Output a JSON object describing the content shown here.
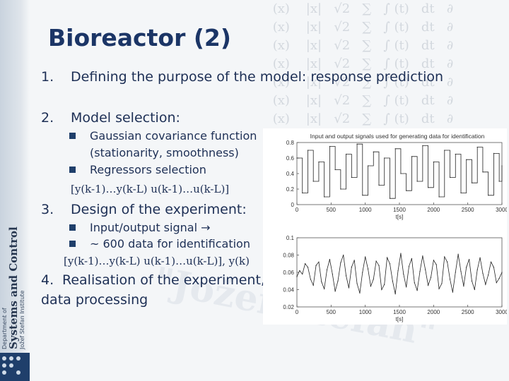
{
  "slide": {
    "title": "Bioreactor (2)",
    "items": [
      {
        "num": "1.",
        "text": "Defining the purpose of the model: response prediction"
      },
      {
        "num": "2.",
        "text": "Model selection:"
      },
      {
        "num": "3.",
        "text": "Design of the experiment:"
      },
      {
        "num": "4.",
        "text": "Realisation of the experiment,"
      }
    ],
    "item4_line2": "data processing",
    "model_selection": {
      "bullet1_line1": "Gaussian covariance function",
      "bullet1_line2": "(stationarity, smoothness)",
      "bullet2": "Regressors selection",
      "formula": "[y(k-1)…y(k-L)  u(k-1)…u(k-L)]"
    },
    "experiment_design": {
      "bullet1": "Input/output signal →",
      "bullet2": "~ 600 data for identification",
      "formula": "[y(k-1)…y(k-L)  u(k-1)…u(k-L)], y(k)"
    }
  },
  "sidebar": {
    "line1": "Department of",
    "line2": "Systems and Control",
    "line3": "Jožef Stefan Institute"
  },
  "watermark": "\"Jožef Stefan\"",
  "colors": {
    "title": "#1b3566",
    "text": "#1d2f55",
    "bullet": "#1f3f6b"
  },
  "chart_data": [
    {
      "type": "line",
      "title": "Input and output signals used for generating data for identification",
      "xlabel": "t[s]",
      "ylabel": "",
      "xticks": [
        "0",
        "500",
        "1000",
        "1500",
        "2000",
        "2500",
        "3000"
      ],
      "yticks": [
        "0",
        "0.2",
        "0.4",
        "0.6",
        "0.8"
      ],
      "xlim": [
        0,
        3000
      ],
      "ylim": [
        0,
        0.8
      ],
      "series": [
        {
          "x": [
            0,
            80,
            160,
            240,
            320,
            400,
            480,
            560,
            640,
            720,
            800,
            880,
            960,
            1040,
            1120,
            1200,
            1280,
            1360,
            1440,
            1520,
            1600,
            1680,
            1760,
            1840,
            1920,
            2000,
            2080,
            2160,
            2240,
            2320,
            2400,
            2480,
            2560,
            2640,
            2720,
            2800,
            2880,
            2960,
            3000
          ],
          "values": [
            0.6,
            0.15,
            0.7,
            0.3,
            0.55,
            0.1,
            0.75,
            0.45,
            0.2,
            0.65,
            0.35,
            0.78,
            0.12,
            0.5,
            0.68,
            0.25,
            0.6,
            0.08,
            0.72,
            0.4,
            0.18,
            0.62,
            0.3,
            0.76,
            0.22,
            0.55,
            0.1,
            0.7,
            0.35,
            0.65,
            0.15,
            0.58,
            0.28,
            0.74,
            0.42,
            0.12,
            0.66,
            0.3,
            0.5
          ]
        }
      ]
    },
    {
      "type": "line",
      "title": "",
      "xlabel": "t[s]",
      "ylabel": "",
      "xticks": [
        "0",
        "500",
        "1000",
        "1500",
        "2000",
        "2500",
        "3000"
      ],
      "yticks": [
        "0.02",
        "0.04",
        "0.06",
        "0.08",
        "0.1"
      ],
      "xlim": [
        0,
        3000
      ],
      "ylim": [
        0.02,
        0.1
      ],
      "series": [
        {
          "x": [
            0,
            40,
            80,
            120,
            160,
            200,
            240,
            280,
            320,
            360,
            400,
            440,
            480,
            520,
            560,
            600,
            640,
            680,
            720,
            760,
            800,
            840,
            880,
            920,
            960,
            1000,
            1040,
            1080,
            1120,
            1160,
            1200,
            1240,
            1280,
            1320,
            1360,
            1400,
            1440,
            1480,
            1520,
            1560,
            1600,
            1640,
            1680,
            1720,
            1760,
            1800,
            1840,
            1880,
            1920,
            1960,
            2000,
            2040,
            2080,
            2120,
            2160,
            2200,
            2240,
            2280,
            2320,
            2360,
            2400,
            2440,
            2480,
            2520,
            2560,
            2600,
            2640,
            2680,
            2720,
            2760,
            2800,
            2840,
            2880,
            2920,
            2960,
            3000
          ],
          "values": [
            0.055,
            0.062,
            0.058,
            0.07,
            0.066,
            0.052,
            0.045,
            0.068,
            0.072,
            0.049,
            0.041,
            0.063,
            0.075,
            0.058,
            0.038,
            0.05,
            0.071,
            0.08,
            0.056,
            0.042,
            0.066,
            0.074,
            0.047,
            0.036,
            0.06,
            0.078,
            0.064,
            0.044,
            0.052,
            0.073,
            0.068,
            0.04,
            0.046,
            0.077,
            0.07,
            0.05,
            0.035,
            0.062,
            0.082,
            0.058,
            0.043,
            0.067,
            0.076,
            0.048,
            0.039,
            0.061,
            0.079,
            0.063,
            0.045,
            0.054,
            0.074,
            0.069,
            0.041,
            0.047,
            0.078,
            0.072,
            0.052,
            0.037,
            0.06,
            0.081,
            0.061,
            0.044,
            0.066,
            0.075,
            0.05,
            0.04,
            0.063,
            0.077,
            0.059,
            0.046,
            0.057,
            0.072,
            0.066,
            0.048,
            0.053,
            0.06
          ]
        }
      ]
    }
  ]
}
